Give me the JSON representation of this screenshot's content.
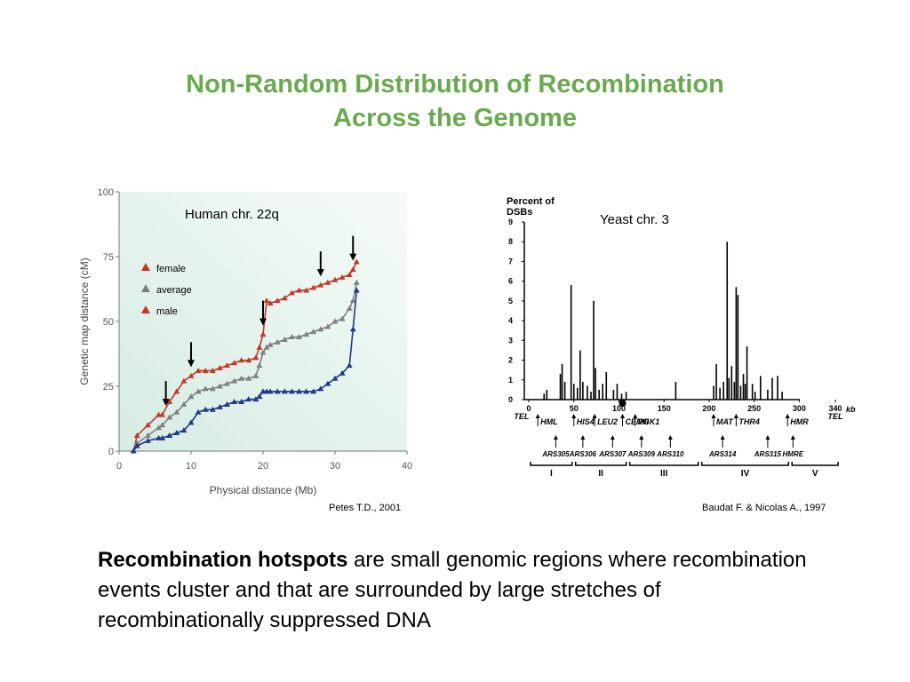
{
  "slide": {
    "title_line1": "Non-Random Distribution of Recombination",
    "title_line2": "Across the Genome",
    "body_bold": "Recombination hotspots",
    "body_rest": " are small genomic regions where recombination events cluster and that are surrounded by large stretches of recombinationally suppressed DNA",
    "left_credit": "Petes T.D., 2001",
    "right_credit": "Baudat F. & Nicolas A., 1997"
  },
  "colors": {
    "title": "#6aaa4e",
    "female": "#c0392b",
    "average": "#808080",
    "male": "#1f3a8a",
    "bg_left": "#e8f4ee"
  },
  "chart_data": [
    {
      "type": "line",
      "annotation": "Human chr. 22q",
      "xlabel": "Physical distance (Mb)",
      "ylabel": "Genetic map distance (cM)",
      "xlim": [
        0,
        40
      ],
      "ylim": [
        0,
        100
      ],
      "xticks": [
        "0",
        "10",
        "20",
        "30",
        "40"
      ],
      "yticks": [
        "0",
        "25",
        "50",
        "75",
        "100"
      ],
      "legend_position": "top-left",
      "series": [
        {
          "name": "female",
          "color": "#c0392b",
          "marker": "triangle",
          "x": [
            2,
            2.5,
            4,
            5.5,
            6,
            7,
            8,
            9,
            10,
            11,
            12,
            13,
            14,
            15,
            16,
            17,
            18,
            19,
            19.5,
            20,
            20.5,
            21,
            22,
            23,
            24,
            25,
            26,
            27,
            28,
            29,
            30,
            31,
            32,
            32.5,
            33
          ],
          "y": [
            0,
            6,
            10,
            14,
            14,
            19,
            23,
            27,
            29,
            31,
            31,
            31,
            32,
            33,
            34,
            35,
            35,
            36,
            40,
            45,
            58,
            57,
            58,
            59,
            61,
            62,
            62,
            63,
            64,
            65,
            66,
            67,
            68,
            70,
            73
          ]
        },
        {
          "name": "average",
          "color": "#808080",
          "marker": "triangle",
          "x": [
            2,
            2.5,
            4,
            5.5,
            6,
            7,
            8,
            9,
            10,
            11,
            12,
            13,
            14,
            15,
            16,
            17,
            18,
            19,
            19.5,
            20,
            20.5,
            21,
            22,
            23,
            24,
            25,
            26,
            27,
            28,
            29,
            30,
            31,
            32,
            32.5,
            33
          ],
          "y": [
            0,
            3,
            6,
            9,
            10,
            13,
            15,
            18,
            21,
            23,
            24,
            24,
            25,
            26,
            27,
            28,
            28,
            29,
            33,
            38,
            40,
            41,
            42,
            43,
            44,
            44,
            45,
            46,
            47,
            48,
            50,
            51,
            55,
            58,
            65
          ]
        },
        {
          "name": "male",
          "color": "#1f3a8a",
          "marker": "triangle",
          "x": [
            2,
            2.5,
            4,
            5.5,
            6,
            7,
            8,
            9,
            10,
            11,
            12,
            13,
            14,
            15,
            16,
            17,
            18,
            19,
            19.5,
            20,
            20.5,
            21,
            22,
            23,
            24,
            25,
            26,
            27,
            28,
            29,
            30,
            31,
            32,
            32.5,
            33
          ],
          "y": [
            0,
            2,
            4,
            5,
            5,
            6,
            7,
            8,
            11,
            15,
            16,
            16,
            17,
            18,
            19,
            19,
            20,
            20,
            21,
            23,
            23,
            23,
            23,
            23,
            23,
            23,
            23,
            23,
            24,
            26,
            28,
            30,
            33,
            47,
            62
          ]
        }
      ],
      "hotspot_arrows_x": [
        6.5,
        10,
        20,
        28,
        32.5
      ]
    },
    {
      "type": "bar",
      "annotation": "Yeast chr. 3",
      "ylabel_line1": "Percent of",
      "ylabel_line2": "DSBs",
      "xlim": [
        0,
        340
      ],
      "ylim": [
        0,
        9
      ],
      "xunit": "kb",
      "xticks": [
        "0",
        "50",
        "100",
        "150",
        "200",
        "250",
        "300",
        "340"
      ],
      "yticks": [
        "0",
        "1",
        "2",
        "3",
        "4",
        "5",
        "6",
        "7",
        "8",
        "9"
      ],
      "x": [
        17,
        20,
        35,
        37,
        40,
        47,
        50,
        54,
        57,
        60,
        65,
        69,
        72,
        74,
        78,
        82,
        86,
        94,
        98,
        103,
        108,
        163,
        205,
        208,
        212,
        216,
        220,
        222,
        225,
        228,
        230,
        232,
        235,
        238,
        240,
        242,
        248,
        251,
        257,
        265,
        270,
        276,
        281
      ],
      "values": [
        0.3,
        0.5,
        1.3,
        1.8,
        0.9,
        5.8,
        0.8,
        0.6,
        2.5,
        0.9,
        0.7,
        0.4,
        5.0,
        1.6,
        0.5,
        0.8,
        1.4,
        0.5,
        0.8,
        0.3,
        0.4,
        0.9,
        0.7,
        1.8,
        0.6,
        0.9,
        8.0,
        1.1,
        1.7,
        0.9,
        5.7,
        5.3,
        0.7,
        1.3,
        0.8,
        2.7,
        0.8,
        0.4,
        1.2,
        0.5,
        1.1,
        1.2,
        0.4
      ],
      "loci_top": [
        "TEL",
        "HML",
        "HIS4",
        "LEU2",
        "CENIII",
        "PGK1",
        "MAT",
        "THR4",
        "HMR",
        "TEL"
      ],
      "loci_top_x": [
        -8,
        10,
        50,
        73,
        104,
        118,
        205,
        230,
        287,
        340
      ],
      "loci_bottom": [
        "ARS305",
        "ARS306",
        "ARS307",
        "ARS309",
        "ARS310",
        "ARS314",
        "ARS315",
        "HMRE"
      ],
      "loci_bottom_x": [
        30,
        60,
        93,
        125,
        157,
        215,
        265,
        293
      ],
      "regions": [
        "I",
        "II",
        "III",
        "IV",
        "V"
      ],
      "region_bounds": [
        [
          0,
          50
        ],
        [
          50,
          110
        ],
        [
          110,
          190
        ],
        [
          190,
          290
        ],
        [
          290,
          345
        ]
      ]
    }
  ]
}
